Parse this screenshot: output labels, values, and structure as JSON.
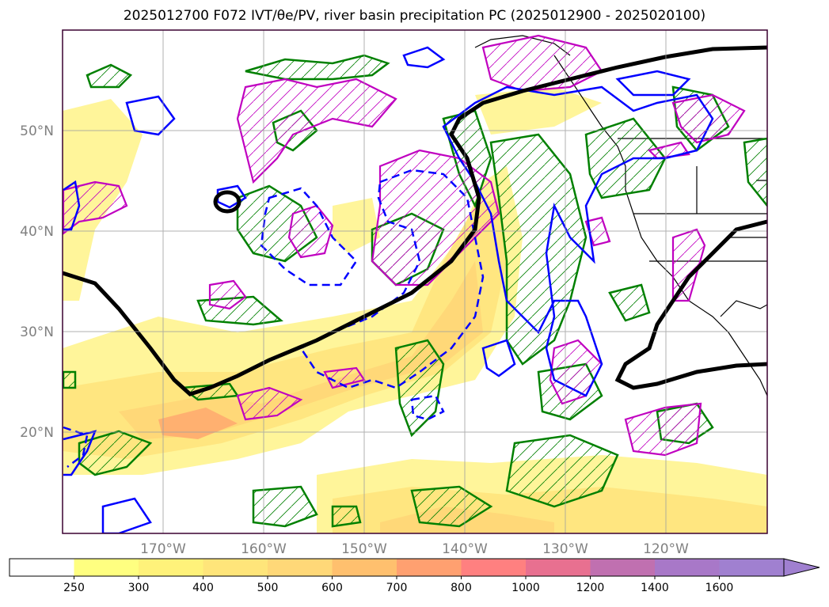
{
  "title": "2025012700 F072 IVT/θe/PV, river basin precipitation PC (2025012900 - 2025020100)",
  "map": {
    "lat_labels": [
      "50°N",
      "40°N",
      "30°N",
      "20°N"
    ],
    "lon_labels": [
      "170°W",
      "160°W",
      "150°W",
      "140°W",
      "130°W",
      "120°W"
    ]
  },
  "colorbar": {
    "levels": [
      "250",
      "300",
      "400",
      "500",
      "600",
      "700",
      "800",
      "1000",
      "1200",
      "1400",
      "1600"
    ],
    "colors": [
      "#ffffff",
      "#ffff80",
      "#fff27a",
      "#ffe57a",
      "#ffd878",
      "#ffc06e",
      "#ffa070",
      "#ff8080",
      "#e87090",
      "#c070b0",
      "#a878c8",
      "#a080d0"
    ]
  },
  "legend_colors": {
    "ivt_fill": "#ffec80",
    "theta_e_contour": "#0000ff",
    "pv_contour": "#008000",
    "precip_pc_contour": "#c000c0",
    "thick_contour": "#000000"
  }
}
